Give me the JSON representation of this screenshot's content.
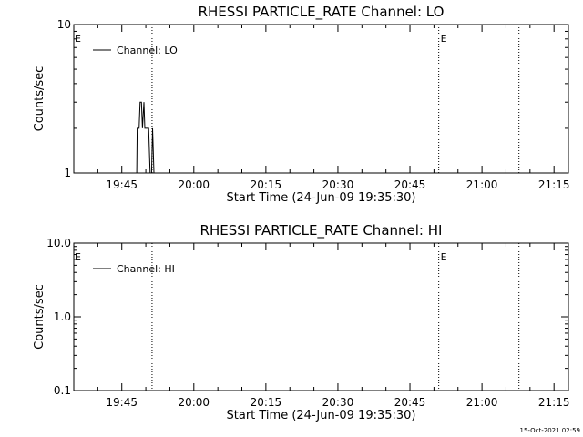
{
  "chart_data": [
    {
      "type": "line",
      "title": "RHESSI PARTICLE_RATE Channel: LO",
      "xlabel": "Start Time (24-Jun-09 19:35:30)",
      "ylabel": "Counts/sec",
      "yscale": "log",
      "ylim": [
        1,
        10
      ],
      "xlim_min": [
        0,
        103
      ],
      "x_ticks": [
        {
          "min": 10,
          "label": "19:45"
        },
        {
          "min": 25,
          "label": "20:00"
        },
        {
          "min": 40,
          "label": "20:15"
        },
        {
          "min": 55,
          "label": "20:30"
        },
        {
          "min": 70,
          "label": "20:45"
        },
        {
          "min": 85,
          "label": "21:00"
        },
        {
          "min": 100,
          "label": "21:15"
        }
      ],
      "y_ticks": [
        {
          "value": 1,
          "label": "1"
        },
        {
          "value": 10,
          "label": "10"
        }
      ],
      "grid": false,
      "legend": "top-left",
      "series": [
        {
          "name": "Channel: LO",
          "points": [
            [
              0,
              1
            ],
            [
              13.1,
              1
            ],
            [
              13.2,
              2
            ],
            [
              13.6,
              2
            ],
            [
              13.8,
              3
            ],
            [
              14.1,
              3
            ],
            [
              14.3,
              2
            ],
            [
              14.6,
              3
            ],
            [
              14.8,
              2
            ],
            [
              15.6,
              2
            ],
            [
              15.9,
              1
            ],
            [
              16.2,
              1
            ],
            [
              16.4,
              2
            ],
            [
              16.7,
              1
            ],
            [
              103,
              1
            ]
          ]
        }
      ],
      "events": [
        {
          "min": 16.3,
          "label": ""
        },
        {
          "min": 76,
          "label": "E"
        },
        {
          "min": 92.7,
          "label": ""
        }
      ],
      "edge_marker": "E"
    },
    {
      "type": "line",
      "title": "RHESSI PARTICLE_RATE Channel: HI",
      "xlabel": "Start Time (24-Jun-09 19:35:30)",
      "ylabel": "Counts/sec",
      "yscale": "log",
      "ylim": [
        0.1,
        10
      ],
      "xlim_min": [
        0,
        103
      ],
      "x_ticks": [
        {
          "min": 10,
          "label": "19:45"
        },
        {
          "min": 25,
          "label": "20:00"
        },
        {
          "min": 40,
          "label": "20:15"
        },
        {
          "min": 55,
          "label": "20:30"
        },
        {
          "min": 70,
          "label": "20:45"
        },
        {
          "min": 85,
          "label": "21:00"
        },
        {
          "min": 100,
          "label": "21:15"
        }
      ],
      "y_ticks": [
        {
          "value": 0.1,
          "label": "0.1"
        },
        {
          "value": 1,
          "label": "1.0"
        },
        {
          "value": 10,
          "label": "10.0"
        }
      ],
      "grid": false,
      "legend": "top-left",
      "series": [
        {
          "name": "Channel: HI",
          "points": []
        }
      ],
      "events": [
        {
          "min": 16.3,
          "label": ""
        },
        {
          "min": 76,
          "label": "E"
        },
        {
          "min": 92.7,
          "label": ""
        }
      ],
      "edge_marker": "E"
    }
  ],
  "footer": {
    "timestamp": "15-Oct-2021 02:59"
  }
}
